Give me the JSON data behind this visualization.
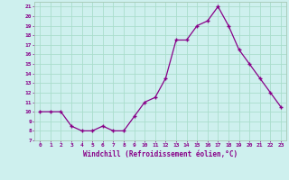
{
  "x": [
    0,
    1,
    2,
    3,
    4,
    5,
    6,
    7,
    8,
    9,
    10,
    11,
    12,
    13,
    14,
    15,
    16,
    17,
    18,
    19,
    20,
    21,
    22,
    23
  ],
  "y": [
    10,
    10,
    10,
    8.5,
    8,
    8,
    8.5,
    8,
    8,
    9.5,
    11,
    11.5,
    13.5,
    17.5,
    17.5,
    19,
    19.5,
    21,
    19,
    16.5,
    15,
    13.5,
    12,
    10.5
  ],
  "xlim": [
    -0.5,
    23.5
  ],
  "ylim": [
    7,
    21.5
  ],
  "yticks": [
    7,
    8,
    9,
    10,
    11,
    12,
    13,
    14,
    15,
    16,
    17,
    18,
    19,
    20,
    21
  ],
  "xticks": [
    0,
    1,
    2,
    3,
    4,
    5,
    6,
    7,
    8,
    9,
    10,
    11,
    12,
    13,
    14,
    15,
    16,
    17,
    18,
    19,
    20,
    21,
    22,
    23
  ],
  "xlabel": "Windchill (Refroidissement éolien,°C)",
  "line_color": "#880088",
  "marker": "+",
  "bg_color": "#cef0ee",
  "grid_color": "#aaddcc",
  "border_color": "#aaccbb"
}
